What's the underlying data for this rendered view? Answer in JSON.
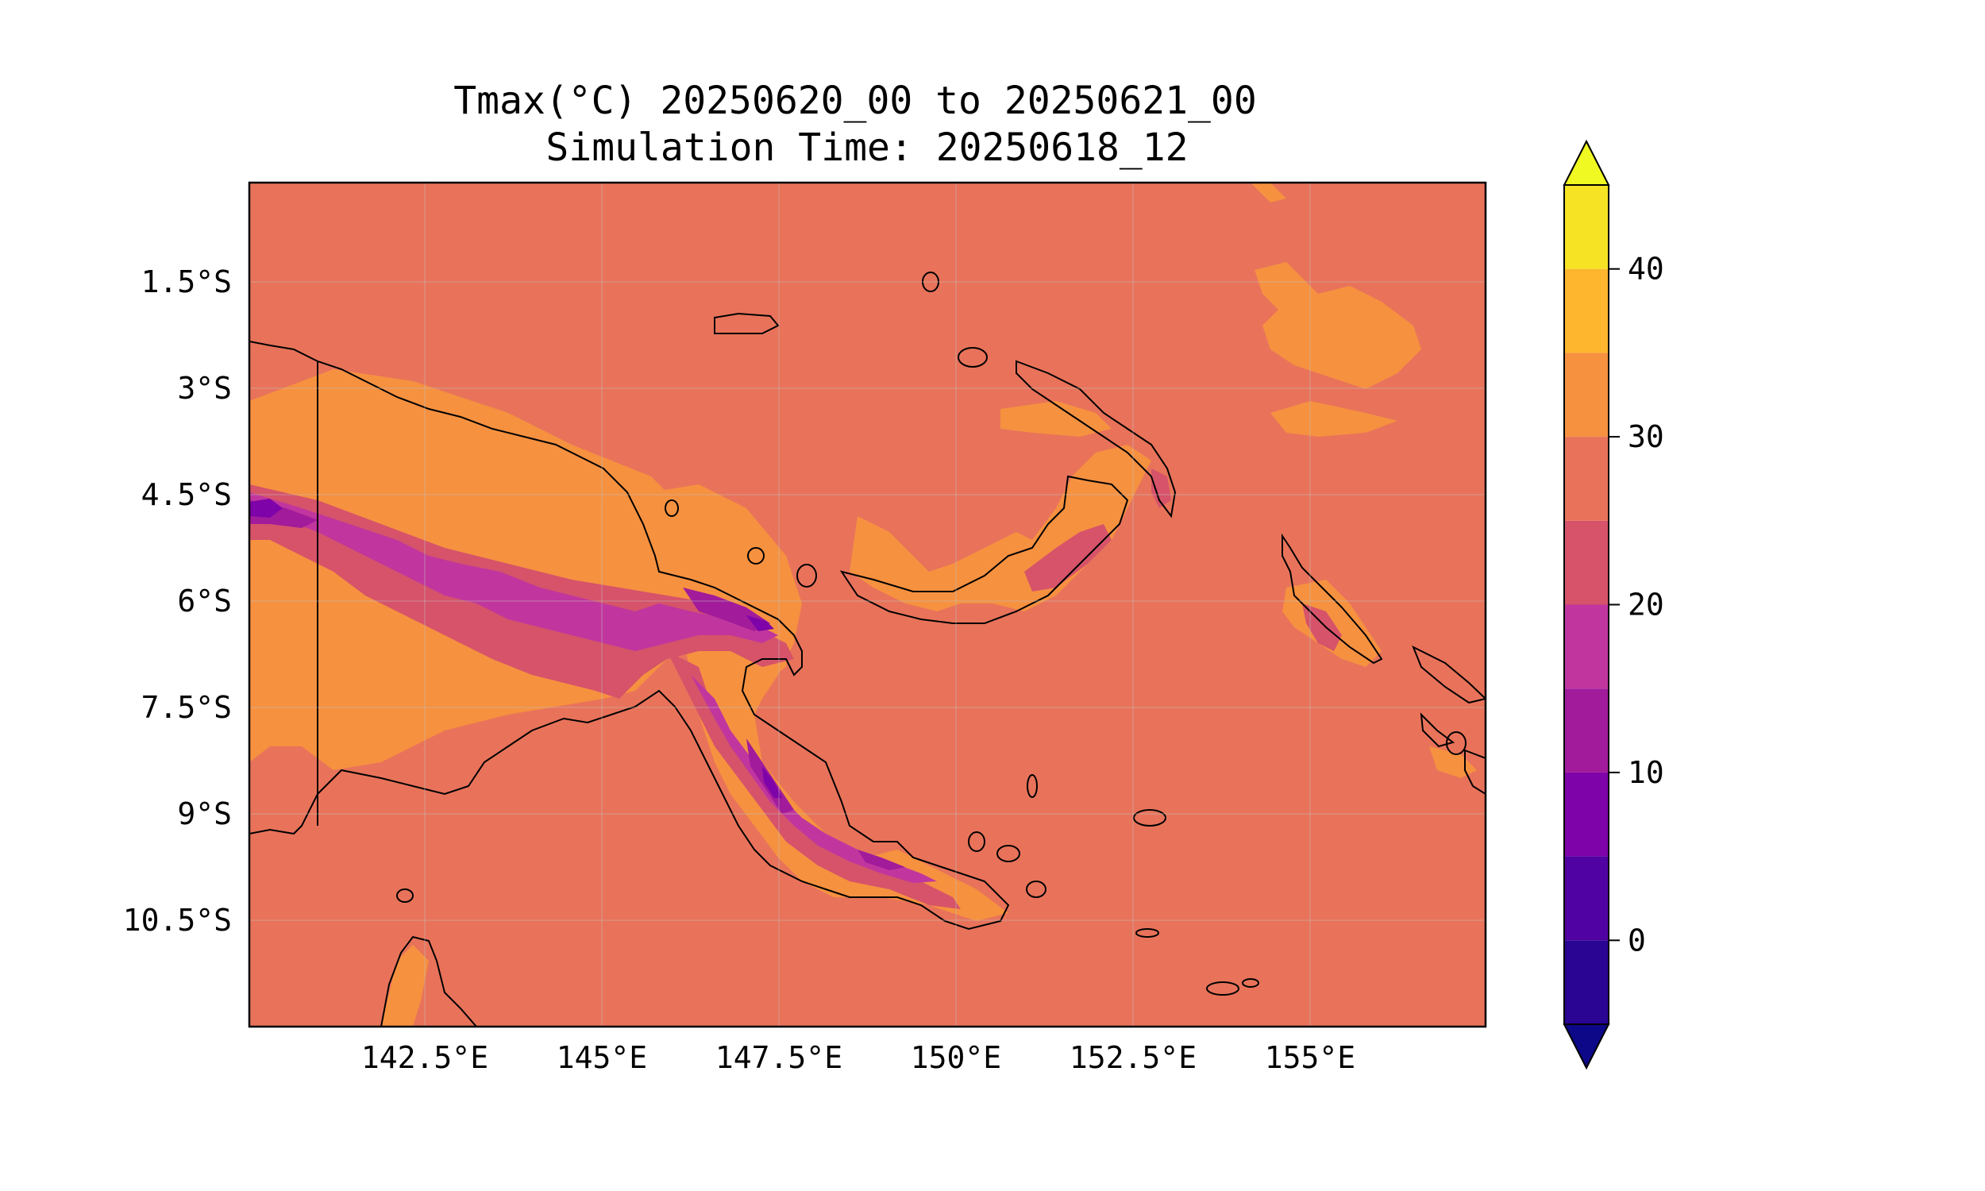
{
  "title": {
    "line1": "Tmax(°C) 20250620_00 to 20250621_00",
    "line2": "Simulation Time: 20250618_12"
  },
  "map": {
    "region": "Papua New Guinea",
    "background_color": "#e8735a",
    "coastline_color": "#000000",
    "lat_ticks": [
      "1.5°S",
      "3°S",
      "4.5°S",
      "6°S",
      "7.5°S",
      "9°S",
      "10.5°S"
    ],
    "lon_ticks": [
      "142.5°E",
      "145°E",
      "147.5°E",
      "150°E",
      "152.5°E",
      "155°E"
    ]
  },
  "colorbar": {
    "tick_labels": [
      "0",
      "10",
      "20",
      "30",
      "40"
    ],
    "levels": [
      -5,
      0,
      5,
      10,
      15,
      20,
      25,
      30,
      35,
      40,
      45
    ],
    "under_color": "#0d0887",
    "over_color": "#f0f921",
    "colors": [
      "#2a0593",
      "#5002a2",
      "#7e03a8",
      "#a11b9b",
      "#c0369e",
      "#d6536a",
      "#e8735a",
      "#f69140",
      "#fdb62e",
      "#f5e324"
    ]
  },
  "chart_data": {
    "type": "heatmap",
    "title": "Tmax(°C) 20250620_00 to 20250621_00\nSimulation Time: 20250618_12",
    "x_ticks": [
      "142.5°E",
      "145°E",
      "147.5°E",
      "150°E",
      "152.5°E",
      "155°E"
    ],
    "y_ticks": [
      "1.5°S",
      "3°S",
      "4.5°S",
      "6°S",
      "7.5°S",
      "9°S",
      "10.5°S"
    ],
    "colorbar_range": [
      -5,
      45
    ],
    "colorbar_ticks": [
      0,
      10,
      20,
      30,
      40
    ],
    "grid": true
  }
}
